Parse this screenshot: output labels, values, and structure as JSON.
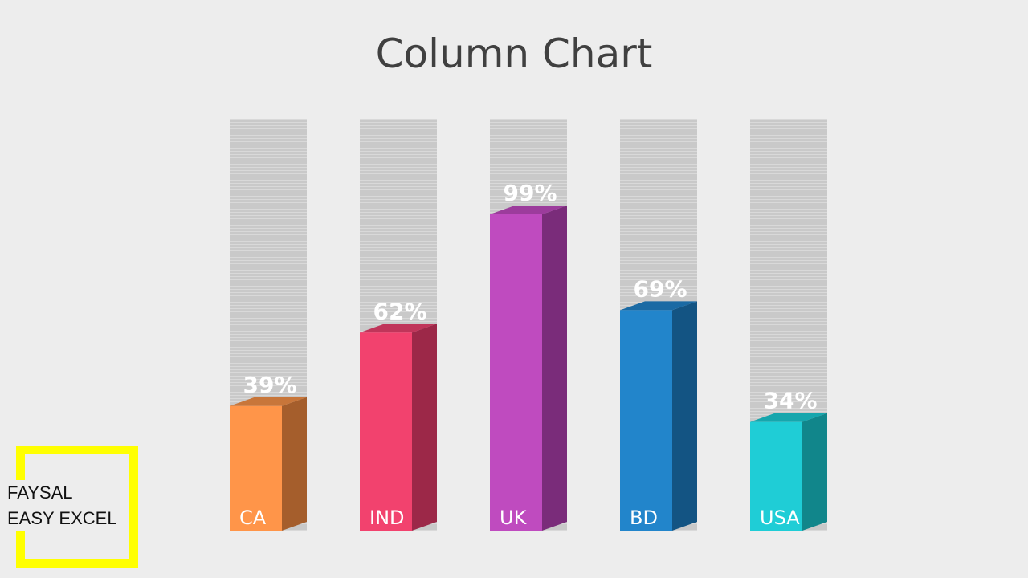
{
  "chart_data": {
    "type": "bar",
    "title": "Column Chart",
    "categories": [
      "CA",
      "IND",
      "UK",
      "BD",
      "USA"
    ],
    "values": [
      39,
      62,
      99,
      69,
      34
    ],
    "value_labels": [
      "39%",
      "62%",
      "99%",
      "69%",
      "34%"
    ],
    "ylim": [
      0,
      100
    ],
    "grid": false,
    "colors": [
      {
        "front": "#ff9549",
        "side": "#a55e2c",
        "top": "#c8763a"
      },
      {
        "front": "#f2426e",
        "side": "#9c2848",
        "top": "#c0355a"
      },
      {
        "front": "#bf4bbf",
        "side": "#7a2c7a",
        "top": "#9c3c9c"
      },
      {
        "front": "#2285cb",
        "side": "#135483",
        "top": "#1a6aa4"
      },
      {
        "front": "#1fcdd6",
        "side": "#11868b",
        "top": "#16a6ad"
      }
    ],
    "track_color": "#c7c7c7",
    "label_color": "#ffffff"
  },
  "watermark": {
    "line1": "FAYSAL",
    "line2": "EASY EXCEL"
  }
}
